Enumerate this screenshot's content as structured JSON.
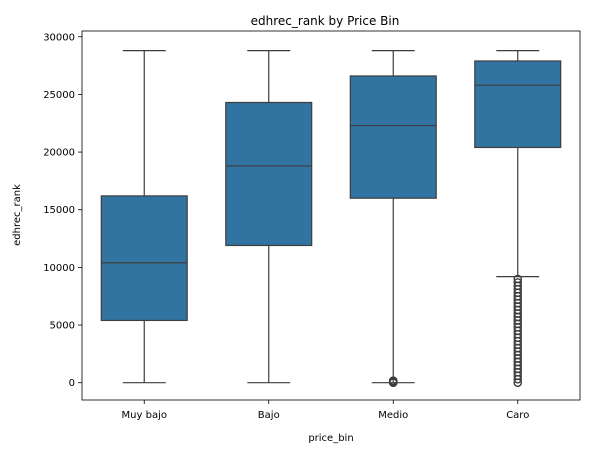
{
  "chart_data": {
    "type": "box",
    "title": "edhrec_rank by Price Bin",
    "xlabel": "price_bin",
    "ylabel": "edhrec_rank",
    "categories": [
      "Muy bajo",
      "Bajo",
      "Medio",
      "Caro"
    ],
    "ylim": [
      -1500,
      30500
    ],
    "yticks": [
      0,
      5000,
      10000,
      15000,
      20000,
      25000,
      30000
    ],
    "ytick_labels": [
      "0",
      "5000",
      "10000",
      "15000",
      "20000",
      "25000",
      "30000"
    ],
    "box_color": "#3274a1",
    "line_color": "#3d3d3d",
    "boxes": [
      {
        "category": "Muy bajo",
        "whisker_low": 0,
        "q1": 5400,
        "median": 10400,
        "q3": 16200,
        "whisker_high": 28800,
        "outliers_low": [],
        "outliers_high": []
      },
      {
        "category": "Bajo",
        "whisker_low": 0,
        "q1": 11900,
        "median": 18800,
        "q3": 24300,
        "whisker_high": 28800,
        "outliers_low": [],
        "outliers_high": []
      },
      {
        "category": "Medio",
        "whisker_low": 0,
        "q1": 16000,
        "median": 22300,
        "q3": 26600,
        "whisker_high": 28800,
        "outliers_low": [
          0,
          20,
          40,
          60,
          80,
          100,
          120,
          140,
          160,
          180
        ],
        "outliers_high": []
      },
      {
        "category": "Caro",
        "whisker_low": 9200,
        "q1": 20400,
        "median": 25800,
        "q3": 27900,
        "whisker_high": 28800,
        "outliers_low": [
          0,
          300,
          600,
          900,
          1200,
          1500,
          1800,
          2100,
          2400,
          2700,
          3000,
          3300,
          3600,
          3900,
          4200,
          4500,
          4800,
          5100,
          5400,
          5700,
          6000,
          6300,
          6600,
          6900,
          7200,
          7500,
          7800,
          8100,
          8400,
          8700,
          9000
        ],
        "outliers_high": []
      }
    ]
  }
}
